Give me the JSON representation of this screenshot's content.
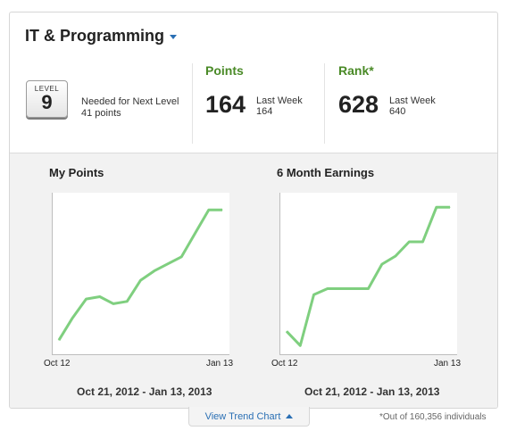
{
  "header": {
    "title": "IT & Programming",
    "dropdown_icon": "caret-down-icon"
  },
  "level": {
    "label": "LEVEL",
    "value": "9",
    "needed_label": "Needed for Next Level",
    "needed_value": "41 points"
  },
  "points": {
    "label": "Points",
    "value": "164",
    "last_week_label": "Last Week",
    "last_week_value": "164"
  },
  "rank": {
    "label": "Rank*",
    "value": "628",
    "last_week_label": "Last Week",
    "last_week_value": "640"
  },
  "colors": {
    "accent_green": "#4a8a27",
    "line_green": "#7fcf7f",
    "link_blue": "#2a6fb4"
  },
  "chart_data": [
    {
      "type": "line",
      "title": "My Points",
      "xlabels": [
        "Oct 12",
        "Jan 13"
      ],
      "date_range": "Oct 21, 2012 - Jan 13, 2013",
      "x": [
        0,
        1,
        2,
        3,
        4,
        5,
        6,
        7,
        8,
        9,
        10,
        11,
        12
      ],
      "values": [
        9,
        28,
        44,
        46,
        40,
        42,
        60,
        68,
        74,
        80,
        100,
        120,
        120
      ],
      "ylim": [
        0,
        130
      ],
      "grid": false
    },
    {
      "type": "line",
      "title": "6 Month Earnings",
      "xlabels": [
        "Oct 12",
        "Jan 13"
      ],
      "date_range": "Oct 21, 2012 - Jan 13, 2013",
      "x": [
        0,
        1,
        2,
        3,
        4,
        5,
        6,
        7,
        8,
        9,
        10,
        11,
        12
      ],
      "values": [
        14,
        0,
        50,
        56,
        56,
        56,
        56,
        80,
        88,
        102,
        102,
        136,
        136
      ],
      "ylim": [
        -5,
        145
      ],
      "grid": false
    }
  ],
  "footer": {
    "trend_button": "View Trend Chart",
    "footnote": "*Out of 160,356 individuals"
  }
}
